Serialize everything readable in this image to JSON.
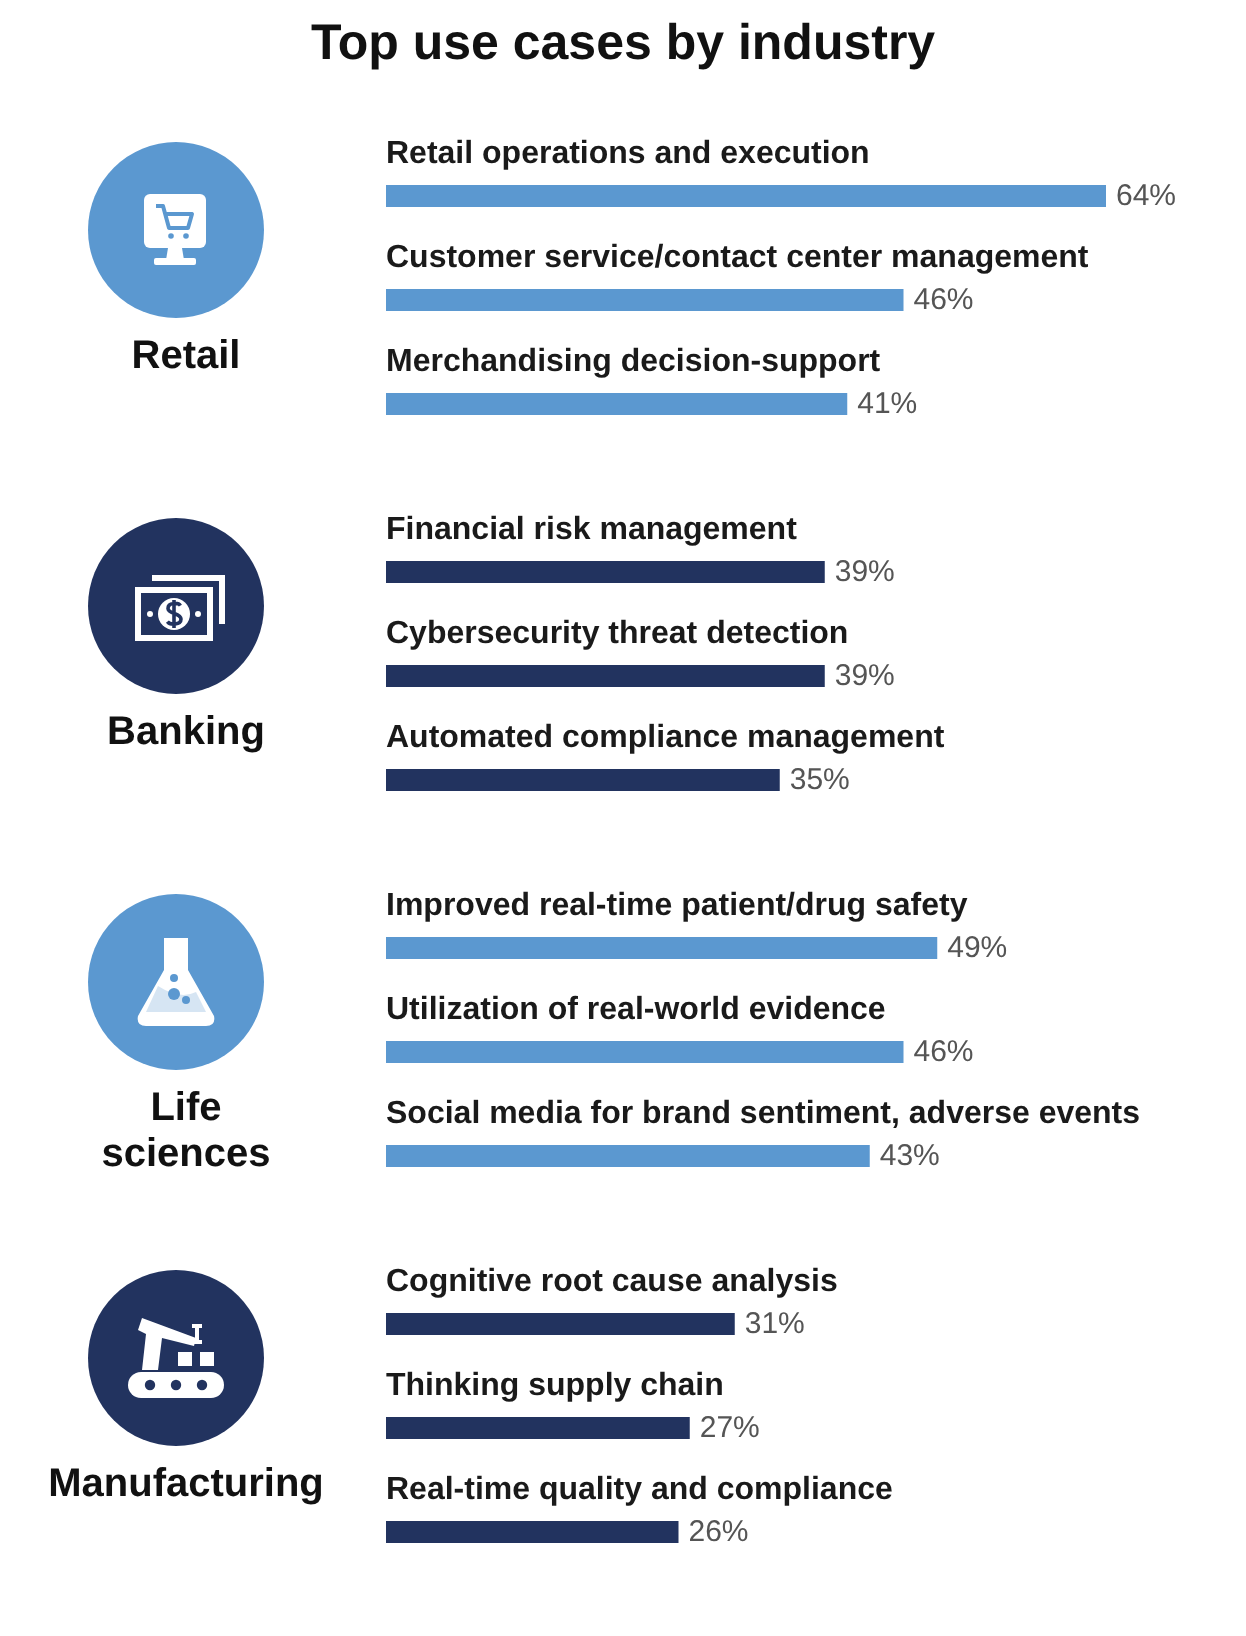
{
  "chart_data": [
    {
      "type": "bar",
      "orientation": "horizontal",
      "title": "Top use cases by industry",
      "ylabel": "Retail",
      "categories": [
        "Retail operations and execution",
        "Customer service/contact center management",
        "Merchandising decision-support"
      ],
      "values": [
        64,
        46,
        41
      ],
      "value_labels": [
        "64%",
        "46%",
        "41%"
      ],
      "color": "#5b98d0"
    },
    {
      "type": "bar",
      "orientation": "horizontal",
      "ylabel": "Banking",
      "categories": [
        "Financial risk management",
        "Cybersecurity threat detection",
        "Automated compliance management"
      ],
      "values": [
        39,
        39,
        35
      ],
      "value_labels": [
        "39%",
        "39%",
        "35%"
      ],
      "color": "#22335f"
    },
    {
      "type": "bar",
      "orientation": "horizontal",
      "ylabel": "Life sciences",
      "categories": [
        "Improved real-time patient/drug safety",
        "Utilization of real-world evidence",
        "Social media for brand sentiment, adverse events"
      ],
      "values": [
        49,
        46,
        43
      ],
      "value_labels": [
        "49%",
        "46%",
        "43%"
      ],
      "color": "#5b98d0"
    },
    {
      "type": "bar",
      "orientation": "horizontal",
      "ylabel": "Manufacturing",
      "categories": [
        "Cognitive root cause analysis",
        "Thinking supply chain",
        "Real-time quality and compliance"
      ],
      "values": [
        31,
        27,
        26
      ],
      "value_labels": [
        "31%",
        "27%",
        "26%"
      ],
      "color": "#22335f"
    }
  ]
}
